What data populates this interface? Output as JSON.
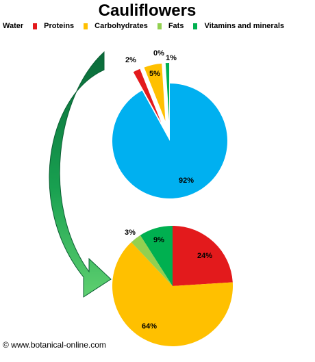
{
  "title": "Cauliflowers",
  "legend": [
    {
      "label": "Water",
      "color": "#00b0f0"
    },
    {
      "label": "Proteins",
      "color": "#e31a1c"
    },
    {
      "label": "Carbohydrates",
      "color": "#ffc000"
    },
    {
      "label": "Fats",
      "color": "#92d050"
    },
    {
      "label": "Vitamins and minerals",
      "color": "#00b050"
    }
  ],
  "footer": "© www.botanical-online.com",
  "chart_data": [
    {
      "type": "pie",
      "title": "",
      "categories": [
        "Water",
        "Proteins",
        "Carbohydrates",
        "Fats",
        "Vitamins and minerals"
      ],
      "values": [
        92,
        2,
        5,
        0,
        1
      ],
      "labels": [
        "92%",
        "2%",
        "5%",
        "0%",
        "1%"
      ],
      "colors": [
        "#00b0f0",
        "#e31a1c",
        "#ffc000",
        "#92d050",
        "#00b050"
      ],
      "exploded": [
        "Proteins",
        "Carbohydrates",
        "Fats",
        "Vitamins and minerals"
      ]
    },
    {
      "type": "pie",
      "title": "",
      "categories": [
        "Proteins",
        "Carbohydrates",
        "Fats",
        "Vitamins and minerals"
      ],
      "values": [
        24,
        64,
        3,
        9
      ],
      "labels": [
        "24%",
        "64%",
        "3%",
        "9%"
      ],
      "colors": [
        "#e31a1c",
        "#ffc000",
        "#92d050",
        "#00b050"
      ]
    }
  ]
}
